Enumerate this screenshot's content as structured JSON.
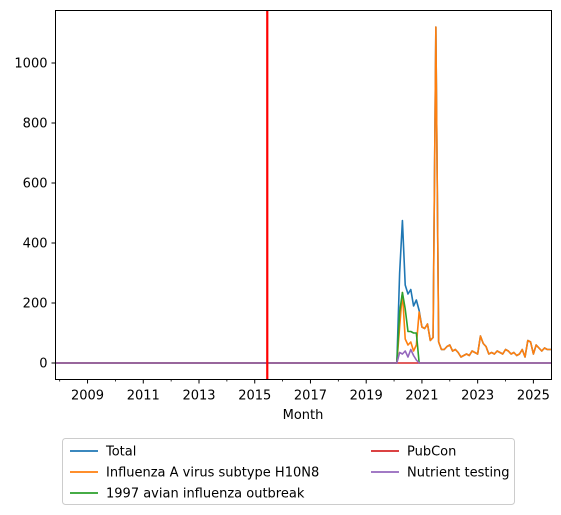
{
  "chart_data": {
    "type": "line",
    "title": "",
    "xlabel": "Month",
    "ylabel": "",
    "xlim": [
      2007.85,
      2025.65
    ],
    "ylim": [
      -55,
      1175
    ],
    "x_ticks": [
      2009,
      2011,
      2013,
      2015,
      2017,
      2019,
      2021,
      2023,
      2025
    ],
    "x_tick_labels": [
      "2009",
      "2011",
      "2013",
      "2015",
      "2017",
      "2019",
      "2021",
      "2023",
      "2025"
    ],
    "y_ticks": [
      0,
      200,
      400,
      600,
      800,
      1000
    ],
    "y_tick_labels": [
      "0",
      "200",
      "400",
      "600",
      "800",
      "1000"
    ],
    "grid": false,
    "legend_position": "bottom",
    "vline": {
      "x": 2015.45,
      "color": "#ff0000"
    },
    "series": [
      {
        "name": "Total",
        "color": "#1f77b4",
        "x": [
          2007.85,
          2020.1,
          2020.2,
          2020.3,
          2020.4,
          2020.5,
          2020.6,
          2020.7,
          2020.8,
          2020.9,
          2021.0,
          2021.1,
          2021.2,
          2021.3,
          2021.4,
          2021.5,
          2021.6,
          2021.7,
          2021.8,
          2021.9,
          2022.0,
          2022.1,
          2022.2,
          2022.3,
          2022.4,
          2022.5,
          2022.6,
          2022.7,
          2022.8,
          2022.9,
          2023.0,
          2023.1,
          2023.2,
          2023.3,
          2023.4,
          2023.5,
          2023.6,
          2023.7,
          2023.8,
          2023.9,
          2024.0,
          2024.1,
          2024.2,
          2024.3,
          2024.4,
          2024.5,
          2024.6,
          2024.7,
          2024.8,
          2024.9,
          2025.0,
          2025.1,
          2025.2,
          2025.3,
          2025.4,
          2025.5,
          2025.65
        ],
        "y": [
          0,
          0,
          300,
          475,
          260,
          230,
          245,
          190,
          210,
          175,
          120,
          115,
          130,
          75,
          85,
          1120,
          70,
          45,
          45,
          55,
          60,
          40,
          45,
          35,
          20,
          25,
          30,
          25,
          40,
          35,
          30,
          90,
          65,
          55,
          30,
          35,
          30,
          40,
          35,
          30,
          45,
          40,
          30,
          35,
          25,
          30,
          45,
          20,
          75,
          70,
          30,
          60,
          50,
          40,
          50,
          45,
          45
        ]
      },
      {
        "name": "Influenza A virus subtype H10N8",
        "color": "#ff7f0e",
        "x": [
          2007.85,
          2020.1,
          2020.2,
          2020.3,
          2020.4,
          2020.5,
          2020.6,
          2020.7,
          2020.8,
          2020.9,
          2021.0,
          2021.1,
          2021.2,
          2021.3,
          2021.4,
          2021.5,
          2021.6,
          2021.7,
          2021.8,
          2021.9,
          2022.0,
          2022.1,
          2022.2,
          2022.3,
          2022.4,
          2022.5,
          2022.6,
          2022.7,
          2022.8,
          2022.9,
          2023.0,
          2023.1,
          2023.2,
          2023.3,
          2023.4,
          2023.5,
          2023.6,
          2023.7,
          2023.8,
          2023.9,
          2024.0,
          2024.1,
          2024.2,
          2024.3,
          2024.4,
          2024.5,
          2024.6,
          2024.7,
          2024.8,
          2024.9,
          2025.0,
          2025.1,
          2025.2,
          2025.3,
          2025.4,
          2025.5,
          2025.65
        ],
        "y": [
          0,
          0,
          120,
          235,
          80,
          60,
          70,
          40,
          60,
          170,
          120,
          115,
          130,
          75,
          85,
          1120,
          70,
          45,
          45,
          55,
          60,
          40,
          45,
          35,
          20,
          25,
          30,
          25,
          40,
          35,
          30,
          90,
          65,
          55,
          30,
          35,
          30,
          40,
          35,
          30,
          45,
          40,
          30,
          35,
          25,
          30,
          45,
          20,
          75,
          70,
          30,
          60,
          50,
          40,
          50,
          45,
          45
        ]
      },
      {
        "name": "1997 avian influenza outbreak",
        "color": "#2ca02c",
        "x": [
          2007.85,
          2020.1,
          2020.2,
          2020.3,
          2020.4,
          2020.5,
          2020.6,
          2020.7,
          2020.8,
          2020.9,
          2025.65
        ],
        "y": [
          0,
          0,
          170,
          235,
          180,
          105,
          105,
          100,
          100,
          0,
          0
        ]
      },
      {
        "name": "PubCon",
        "color": "#d62728",
        "x": [
          2007.85,
          2025.65
        ],
        "y": [
          0,
          0
        ]
      },
      {
        "name": "Nutrient testing",
        "color": "#9467bd",
        "x": [
          2007.85,
          2020.1,
          2020.2,
          2020.3,
          2020.4,
          2020.5,
          2020.6,
          2020.7,
          2020.8,
          2020.9,
          2025.65
        ],
        "y": [
          0,
          0,
          35,
          30,
          40,
          20,
          45,
          25,
          10,
          0,
          0
        ]
      }
    ]
  }
}
